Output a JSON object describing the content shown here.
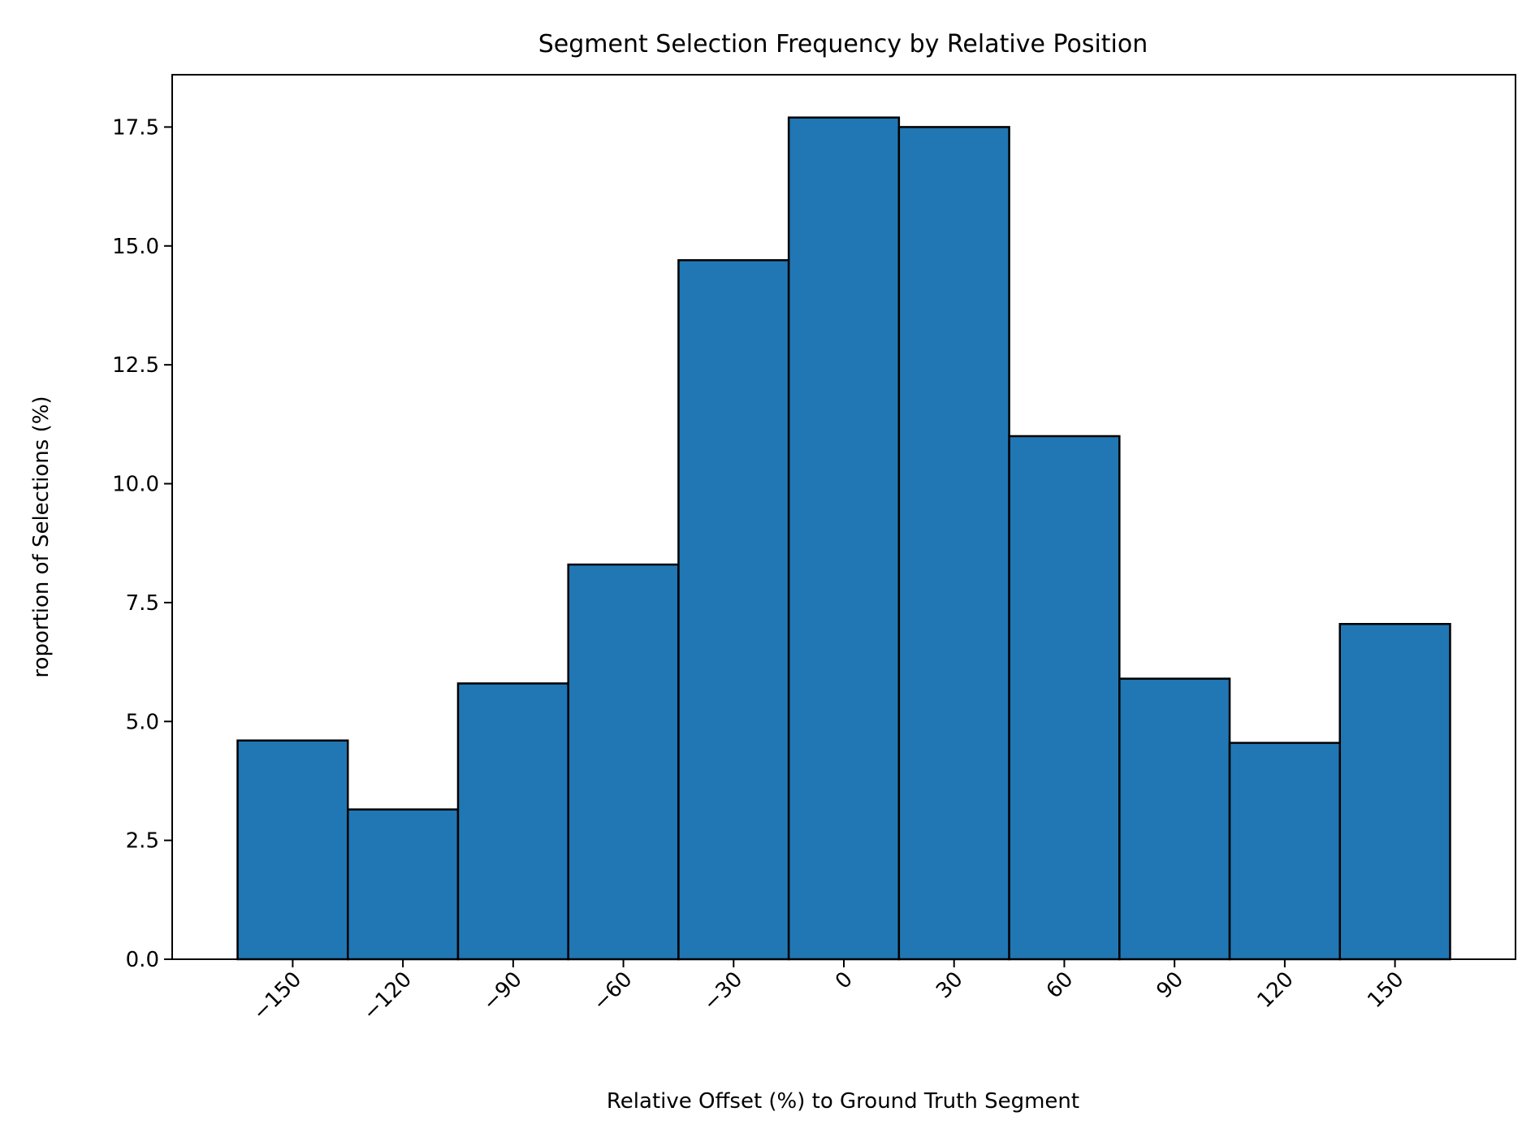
{
  "chart_data": {
    "type": "bar",
    "title": "Segment Selection Frequency by Relative Position",
    "xlabel": "Relative Offset (%) to Ground Truth Segment",
    "ylabel": "roportion of Selections (%)",
    "x": [
      -150,
      -120,
      -90,
      -60,
      -30,
      0,
      30,
      60,
      90,
      120,
      150
    ],
    "bin_width": 30,
    "values": [
      4.6,
      3.15,
      5.8,
      8.3,
      14.7,
      17.7,
      17.5,
      11.0,
      5.9,
      4.55,
      7.05
    ],
    "xticks": [
      -150,
      -120,
      -90,
      -60,
      -30,
      0,
      30,
      60,
      90,
      120,
      150
    ],
    "xtick_labels": [
      "−150",
      "−120",
      "−90",
      "−60",
      "−30",
      "0",
      "30",
      "60",
      "90",
      "120",
      "150"
    ],
    "yticks": [
      0.0,
      2.5,
      5.0,
      7.5,
      10.0,
      12.5,
      15.0,
      17.5
    ],
    "ytick_labels": [
      "0.0",
      "2.5",
      "5.0",
      "7.5",
      "10.0",
      "12.5",
      "15.0",
      "17.5"
    ],
    "xlim": [
      -182.8,
      182.8
    ],
    "ylim": [
      0,
      18.6
    ],
    "bar_color": "#2077b4",
    "edge_color": "#000000",
    "grid": false,
    "legend": "none"
  }
}
